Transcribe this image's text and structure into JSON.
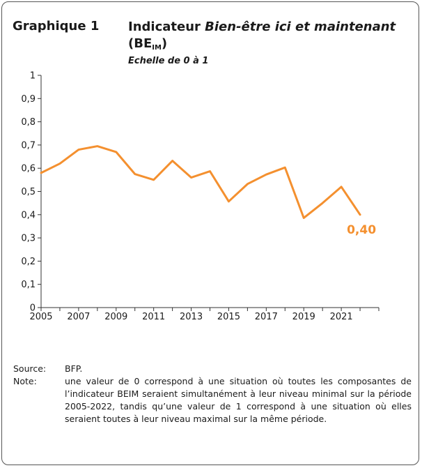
{
  "header": {
    "figure_label": "Graphique 1",
    "title_plain": "Indicateur ",
    "title_italic": "Bien-être ici et maintenant",
    "title_abbr": "(BE",
    "title_abbr_sub": "IM",
    "title_abbr_close": ")",
    "subtitle": "Echelle de 0 à 1"
  },
  "chart_data": {
    "type": "line",
    "x": [
      2005,
      2006,
      2007,
      2008,
      2009,
      2010,
      2011,
      2012,
      2013,
      2014,
      2015,
      2016,
      2017,
      2018,
      2019,
      2020,
      2021,
      2022
    ],
    "series": [
      {
        "values": [
          0.58,
          0.62,
          0.68,
          0.695,
          0.67,
          0.575,
          0.55,
          0.632,
          0.56,
          0.587,
          0.457,
          0.532,
          0.573,
          0.603,
          0.386,
          0.45,
          0.52,
          0.4
        ],
        "color": "#F4902F"
      }
    ],
    "ylim": [
      0,
      1
    ],
    "y_ticks": [
      "0",
      "0,1",
      "0,2",
      "0,3",
      "0,4",
      "0,5",
      "0,6",
      "0,7",
      "0,8",
      "0,9",
      "1"
    ],
    "x_tick_labels": [
      "2005",
      "2007",
      "2009",
      "2011",
      "2013",
      "2015",
      "2017",
      "2019",
      "2021"
    ],
    "end_label": "0,40",
    "grid": false
  },
  "notes": {
    "source_key": "Source:",
    "source_value": "BFP.",
    "note_key": "Note:",
    "note_value": "une valeur de 0 correspond à une situation où toutes les composantes de l’indicateur BEIM seraient simultanément à leur niveau minimal sur la période 2005-2022, tandis qu’une valeur de 1 correspond à une situation où elles seraient toutes à leur niveau maximal sur la même période."
  }
}
